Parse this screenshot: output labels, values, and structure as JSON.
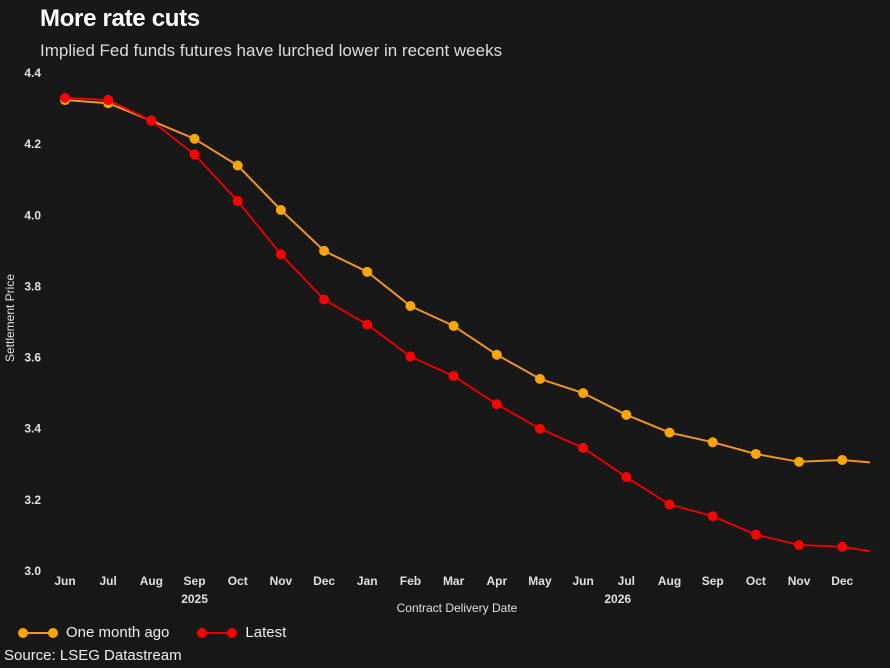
{
  "header": {
    "title": "More rate cuts",
    "subtitle": "Implied Fed funds futures have lurched lower in recent weeks"
  },
  "footer": {
    "source": "Source: LSEG Datastream"
  },
  "chart_data": {
    "type": "line",
    "title": "More rate cuts",
    "subtitle": "Implied Fed funds futures have lurched lower in recent weeks",
    "xlabel": "Contract Delivery Date",
    "ylabel": "Settlement Price",
    "ylim": [
      3.0,
      4.4
    ],
    "yticks": [
      3.0,
      3.2,
      3.4,
      3.6,
      3.8,
      4.0,
      4.2,
      4.4
    ],
    "ytick_labels": [
      "3.0",
      "3.2",
      "3.4",
      "3.6",
      "3.8",
      "4.0",
      "4.2",
      "4.4"
    ],
    "grid": false,
    "legend_position": "bottom-left",
    "categories": [
      "Jun",
      "Jul",
      "Aug",
      "Sep",
      "Oct",
      "Nov",
      "Dec",
      "Jan",
      "Feb",
      "Mar",
      "Apr",
      "May",
      "Jun",
      "Jul",
      "Aug",
      "Sep",
      "Oct",
      "Nov",
      "Dec"
    ],
    "year_labels": [
      {
        "label": "2025",
        "at_index": 3
      },
      {
        "label": "2026",
        "at_index": 12.8
      }
    ],
    "series": [
      {
        "name": "One month ago",
        "color": "#FFA500",
        "line_color": "#F0952A",
        "values": [
          4.324,
          4.315,
          4.266,
          4.215,
          4.14,
          4.015,
          3.9,
          3.841,
          3.745,
          3.689,
          3.608,
          3.54,
          3.5,
          3.439,
          3.389,
          3.362,
          3.329,
          3.307,
          3.312
        ],
        "trailing_value": 3.302
      },
      {
        "name": "Latest",
        "color": "#FF0000",
        "line_color": "#E00000",
        "values": [
          4.33,
          4.324,
          4.266,
          4.171,
          4.04,
          3.89,
          3.763,
          3.693,
          3.603,
          3.548,
          3.469,
          3.4,
          3.346,
          3.264,
          3.187,
          3.154,
          3.102,
          3.073,
          3.068
        ],
        "trailing_value": 3.049
      }
    ],
    "source": "Source: LSEG Datastream"
  }
}
